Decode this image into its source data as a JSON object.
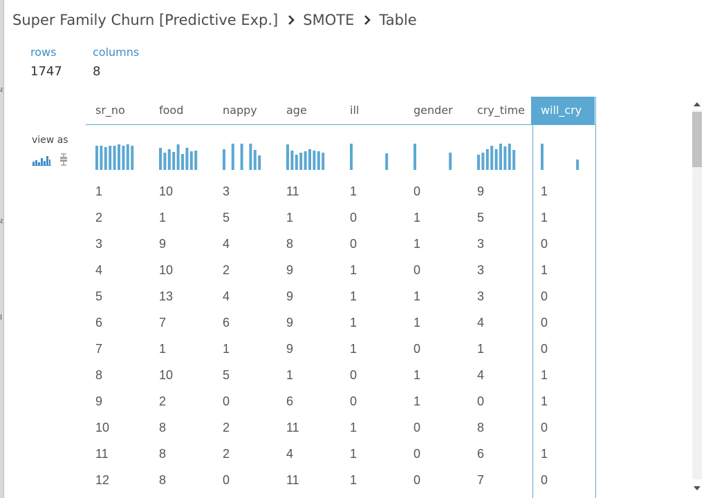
{
  "breadcrumb": {
    "items": [
      "Super Family Churn [Predictive Exp.]",
      "SMOTE",
      "Table"
    ]
  },
  "stats": {
    "rows_label": "rows",
    "rows_value": "1747",
    "columns_label": "columns",
    "columns_value": "8"
  },
  "view_as": {
    "label": "view as",
    "icons": [
      "histogram-icon",
      "boxplot-icon"
    ]
  },
  "colors": {
    "accent": "#5ba8d2",
    "label_blue": "#3d8ec9",
    "text": "#555555"
  },
  "table": {
    "columns": [
      "sr_no",
      "food",
      "nappy",
      "age",
      "ill",
      "gender",
      "cry_time",
      "will_cry"
    ],
    "selected_column": "will_cry",
    "histograms": [
      [
        0.92,
        0.92,
        0.86,
        0.92,
        0.92,
        0.97,
        0.92,
        0.97,
        0.92
      ],
      [
        0.84,
        0.66,
        0.79,
        0.68,
        0.97,
        0.61,
        0.84,
        0.71,
        0.74
      ],
      [
        0.79,
        0.0,
        1.0,
        0.0,
        1.0,
        0.0,
        1.0,
        0.76,
        0.55
      ],
      [
        0.97,
        0.74,
        0.58,
        0.66,
        0.71,
        0.79,
        0.74,
        0.71,
        0.66
      ],
      [
        1.0,
        0.0,
        0.0,
        0.0,
        0.0,
        0.0,
        0.0,
        0.0,
        0.63
      ],
      [
        1.0,
        0.0,
        0.0,
        0.0,
        0.0,
        0.0,
        0.0,
        0.0,
        0.66
      ],
      [
        0.58,
        0.66,
        0.79,
        0.92,
        0.79,
        1.0,
        0.89,
        1.0,
        0.76
      ],
      [
        1.0,
        0.0,
        0.0,
        0.0,
        0.0,
        0.0,
        0.0,
        0.0,
        0.39
      ]
    ],
    "rows": [
      [
        "1",
        "10",
        "3",
        "11",
        "1",
        "0",
        "9",
        "1"
      ],
      [
        "2",
        "1",
        "5",
        "1",
        "0",
        "1",
        "5",
        "1"
      ],
      [
        "3",
        "9",
        "4",
        "8",
        "0",
        "1",
        "3",
        "0"
      ],
      [
        "4",
        "10",
        "2",
        "9",
        "1",
        "0",
        "3",
        "1"
      ],
      [
        "5",
        "13",
        "4",
        "9",
        "1",
        "1",
        "3",
        "0"
      ],
      [
        "6",
        "7",
        "6",
        "9",
        "1",
        "1",
        "4",
        "0"
      ],
      [
        "7",
        "1",
        "1",
        "9",
        "1",
        "0",
        "1",
        "0"
      ],
      [
        "8",
        "10",
        "5",
        "1",
        "0",
        "1",
        "4",
        "1"
      ],
      [
        "9",
        "2",
        "0",
        "6",
        "0",
        "1",
        "0",
        "1"
      ],
      [
        "10",
        "8",
        "2",
        "11",
        "1",
        "0",
        "8",
        "0"
      ],
      [
        "11",
        "8",
        "2",
        "4",
        "1",
        "0",
        "6",
        "1"
      ],
      [
        "12",
        "8",
        "0",
        "11",
        "1",
        "0",
        "7",
        "0"
      ]
    ]
  },
  "scrollbar": {
    "up_icon": "scroll-up-arrow-icon",
    "down_icon": "scroll-down-arrow-icon"
  }
}
